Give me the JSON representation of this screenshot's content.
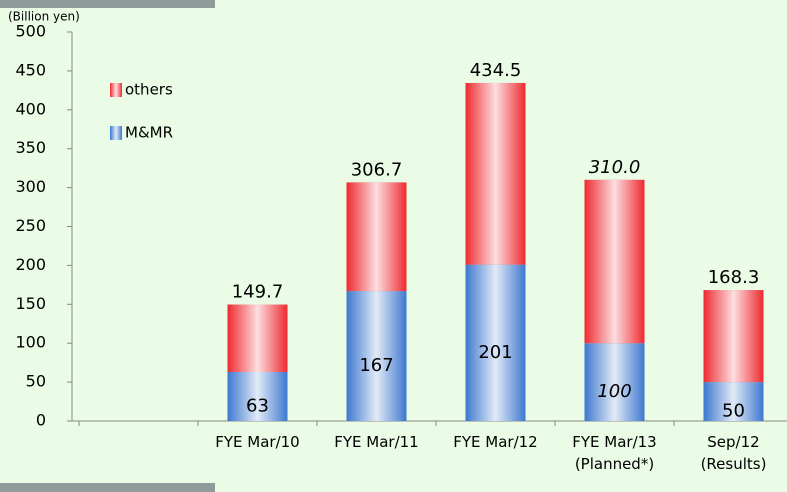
{
  "chart_data": {
    "type": "stacked_bar",
    "y_label": "(Billion yen)",
    "categories": [
      null,
      "FYE Mar/10",
      "FYE Mar/11",
      "FYE Mar/12",
      "FYE Mar/13\n(Planned*)",
      "Sep/12\n(Results)"
    ],
    "series": [
      {
        "name": "M&MR",
        "color": "#3d78cf",
        "values": [
          null,
          63,
          167,
          201,
          100,
          50
        ]
      },
      {
        "name": "others",
        "color": "#ee2a30",
        "values": [
          null,
          86.7,
          139.7,
          233.5,
          210,
          118.3
        ]
      }
    ],
    "totals": [
      null,
      149.7,
      306.7,
      434.5,
      310.0,
      168.3
    ],
    "totals_labels": [
      null,
      "149.7",
      "306.7",
      "434.5",
      "310.0",
      "168.3"
    ],
    "italic": [
      false,
      false,
      false,
      false,
      true,
      false
    ],
    "ylim": [
      0,
      500
    ],
    "yticks": [
      0,
      50,
      100,
      150,
      200,
      250,
      300,
      350,
      400,
      450,
      500
    ]
  }
}
